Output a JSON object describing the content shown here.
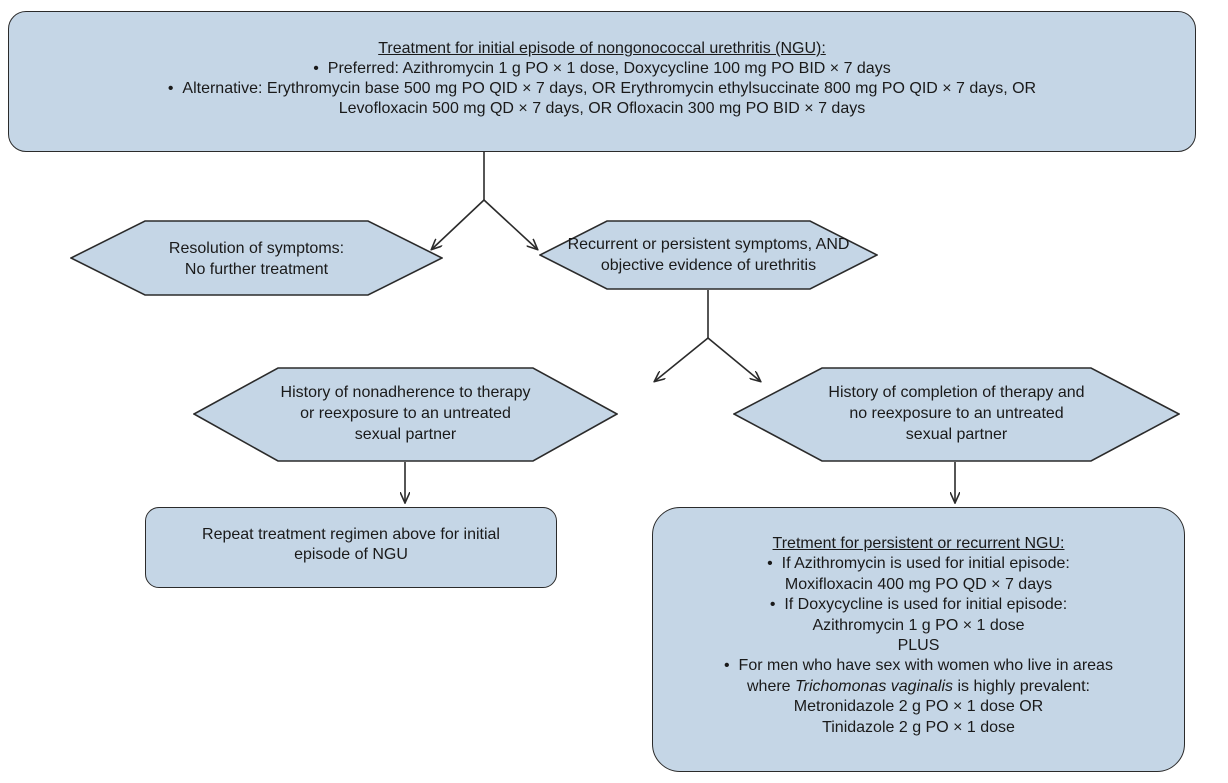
{
  "colors": {
    "fill": "#c5d6e6",
    "stroke": "#2b2b2b",
    "text": "#1a1a1a"
  },
  "initial": {
    "title": "Treatment for initial episode of nongonococcal urethritis (NGU):",
    "preferred": "Preferred: Azithromycin 1 g PO × 1 dose, Doxycycline 100 mg PO BID × 7 days",
    "alternative_line1": "Alternative: Erythromycin base 500 mg PO QID × 7 days, OR Erythromycin ethylsuccinate 800 mg PO QID × 7 days, OR",
    "alternative_line2": "Levofloxacin 500 mg QD × 7 days, OR Ofloxacin 300 mg PO BID × 7 days"
  },
  "resolution": {
    "line1": "Resolution of symptoms:",
    "line2": "No further treatment"
  },
  "recurrent": {
    "line1": "Recurrent or persistent symptoms, AND",
    "line2": "objective evidence of urethritis"
  },
  "nonadherence": {
    "line1": "History of nonadherence to therapy",
    "line2": "or reexposure to an untreated",
    "line3": "sexual partner"
  },
  "completion": {
    "line1": "History of completion of therapy and",
    "line2": "no reexposure to an untreated",
    "line3": "sexual partner"
  },
  "repeat": {
    "line1": "Repeat treatment regimen above for initial",
    "line2": "episode of NGU"
  },
  "persistent": {
    "title": "Tretment for persistent or recurrent NGU:",
    "azithro_if": "If Azithromycin is used for initial episode:",
    "azithro_then": "Moxifloxacin 400 mg PO QD × 7 days",
    "doxy_if": "If Doxycycline is used for initial episode:",
    "doxy_then": "Azithromycin 1 g PO × 1 dose",
    "plus": "PLUS",
    "msw_line1": "For men who have sex with women who live in areas",
    "msw_line2_prefix": "where",
    "msw_line2_organism": "Trichomonas vaginalis",
    "msw_line2_suffix": "is highly prevalent:",
    "metro": "Metronidazole 2 g PO × 1 dose OR",
    "tini": "Tinidazole 2 g PO × 1 dose"
  }
}
